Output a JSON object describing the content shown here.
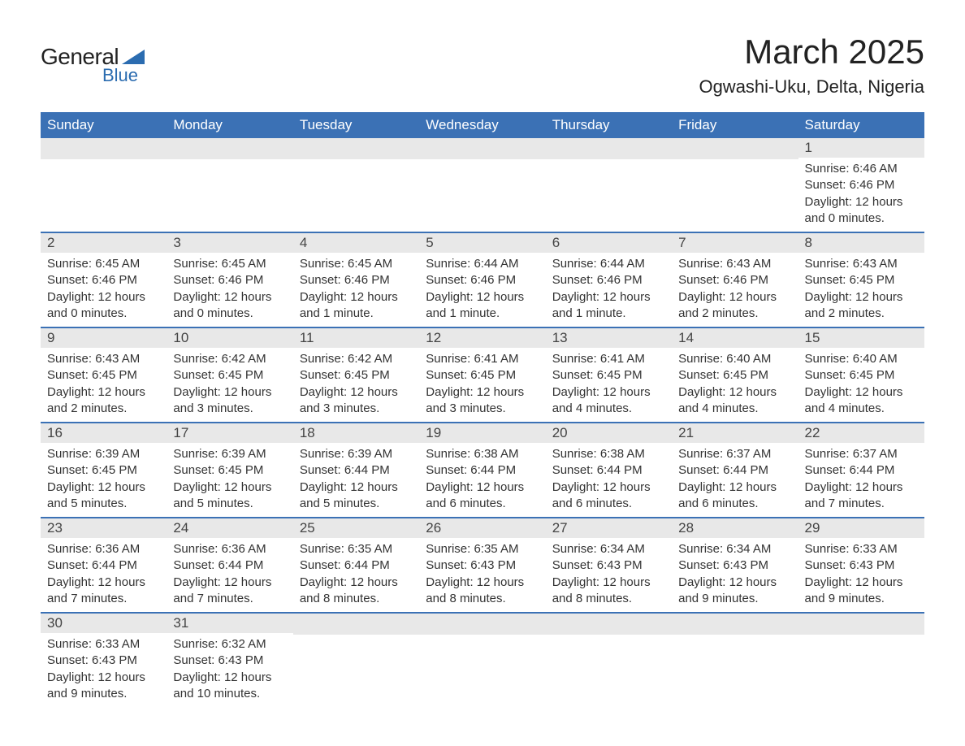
{
  "logo": {
    "text1": "General",
    "text2": "Blue"
  },
  "title": "March 2025",
  "location": "Ogwashi-Uku, Delta, Nigeria",
  "colors": {
    "header_bg": "#3b71b5",
    "header_text": "#ffffff",
    "daynum_bg": "#e8e8e8",
    "row_border": "#3b71b5",
    "body_text": "#333333",
    "logo_blue": "#2b6cb0"
  },
  "fonts": {
    "title_size": 42,
    "location_size": 22,
    "dow_size": 17,
    "daynum_size": 17,
    "body_size": 15
  },
  "days_of_week": [
    "Sunday",
    "Monday",
    "Tuesday",
    "Wednesday",
    "Thursday",
    "Friday",
    "Saturday"
  ],
  "weeks": [
    [
      null,
      null,
      null,
      null,
      null,
      null,
      {
        "n": "1",
        "sunrise": "6:46 AM",
        "sunset": "6:46 PM",
        "daylight": "12 hours and 0 minutes."
      }
    ],
    [
      {
        "n": "2",
        "sunrise": "6:45 AM",
        "sunset": "6:46 PM",
        "daylight": "12 hours and 0 minutes."
      },
      {
        "n": "3",
        "sunrise": "6:45 AM",
        "sunset": "6:46 PM",
        "daylight": "12 hours and 0 minutes."
      },
      {
        "n": "4",
        "sunrise": "6:45 AM",
        "sunset": "6:46 PM",
        "daylight": "12 hours and 1 minute."
      },
      {
        "n": "5",
        "sunrise": "6:44 AM",
        "sunset": "6:46 PM",
        "daylight": "12 hours and 1 minute."
      },
      {
        "n": "6",
        "sunrise": "6:44 AM",
        "sunset": "6:46 PM",
        "daylight": "12 hours and 1 minute."
      },
      {
        "n": "7",
        "sunrise": "6:43 AM",
        "sunset": "6:46 PM",
        "daylight": "12 hours and 2 minutes."
      },
      {
        "n": "8",
        "sunrise": "6:43 AM",
        "sunset": "6:45 PM",
        "daylight": "12 hours and 2 minutes."
      }
    ],
    [
      {
        "n": "9",
        "sunrise": "6:43 AM",
        "sunset": "6:45 PM",
        "daylight": "12 hours and 2 minutes."
      },
      {
        "n": "10",
        "sunrise": "6:42 AM",
        "sunset": "6:45 PM",
        "daylight": "12 hours and 3 minutes."
      },
      {
        "n": "11",
        "sunrise": "6:42 AM",
        "sunset": "6:45 PM",
        "daylight": "12 hours and 3 minutes."
      },
      {
        "n": "12",
        "sunrise": "6:41 AM",
        "sunset": "6:45 PM",
        "daylight": "12 hours and 3 minutes."
      },
      {
        "n": "13",
        "sunrise": "6:41 AM",
        "sunset": "6:45 PM",
        "daylight": "12 hours and 4 minutes."
      },
      {
        "n": "14",
        "sunrise": "6:40 AM",
        "sunset": "6:45 PM",
        "daylight": "12 hours and 4 minutes."
      },
      {
        "n": "15",
        "sunrise": "6:40 AM",
        "sunset": "6:45 PM",
        "daylight": "12 hours and 4 minutes."
      }
    ],
    [
      {
        "n": "16",
        "sunrise": "6:39 AM",
        "sunset": "6:45 PM",
        "daylight": "12 hours and 5 minutes."
      },
      {
        "n": "17",
        "sunrise": "6:39 AM",
        "sunset": "6:45 PM",
        "daylight": "12 hours and 5 minutes."
      },
      {
        "n": "18",
        "sunrise": "6:39 AM",
        "sunset": "6:44 PM",
        "daylight": "12 hours and 5 minutes."
      },
      {
        "n": "19",
        "sunrise": "6:38 AM",
        "sunset": "6:44 PM",
        "daylight": "12 hours and 6 minutes."
      },
      {
        "n": "20",
        "sunrise": "6:38 AM",
        "sunset": "6:44 PM",
        "daylight": "12 hours and 6 minutes."
      },
      {
        "n": "21",
        "sunrise": "6:37 AM",
        "sunset": "6:44 PM",
        "daylight": "12 hours and 6 minutes."
      },
      {
        "n": "22",
        "sunrise": "6:37 AM",
        "sunset": "6:44 PM",
        "daylight": "12 hours and 7 minutes."
      }
    ],
    [
      {
        "n": "23",
        "sunrise": "6:36 AM",
        "sunset": "6:44 PM",
        "daylight": "12 hours and 7 minutes."
      },
      {
        "n": "24",
        "sunrise": "6:36 AM",
        "sunset": "6:44 PM",
        "daylight": "12 hours and 7 minutes."
      },
      {
        "n": "25",
        "sunrise": "6:35 AM",
        "sunset": "6:44 PM",
        "daylight": "12 hours and 8 minutes."
      },
      {
        "n": "26",
        "sunrise": "6:35 AM",
        "sunset": "6:43 PM",
        "daylight": "12 hours and 8 minutes."
      },
      {
        "n": "27",
        "sunrise": "6:34 AM",
        "sunset": "6:43 PM",
        "daylight": "12 hours and 8 minutes."
      },
      {
        "n": "28",
        "sunrise": "6:34 AM",
        "sunset": "6:43 PM",
        "daylight": "12 hours and 9 minutes."
      },
      {
        "n": "29",
        "sunrise": "6:33 AM",
        "sunset": "6:43 PM",
        "daylight": "12 hours and 9 minutes."
      }
    ],
    [
      {
        "n": "30",
        "sunrise": "6:33 AM",
        "sunset": "6:43 PM",
        "daylight": "12 hours and 9 minutes."
      },
      {
        "n": "31",
        "sunrise": "6:32 AM",
        "sunset": "6:43 PM",
        "daylight": "12 hours and 10 minutes."
      },
      null,
      null,
      null,
      null,
      null
    ]
  ],
  "labels": {
    "sunrise": "Sunrise: ",
    "sunset": "Sunset: ",
    "daylight": "Daylight: "
  }
}
